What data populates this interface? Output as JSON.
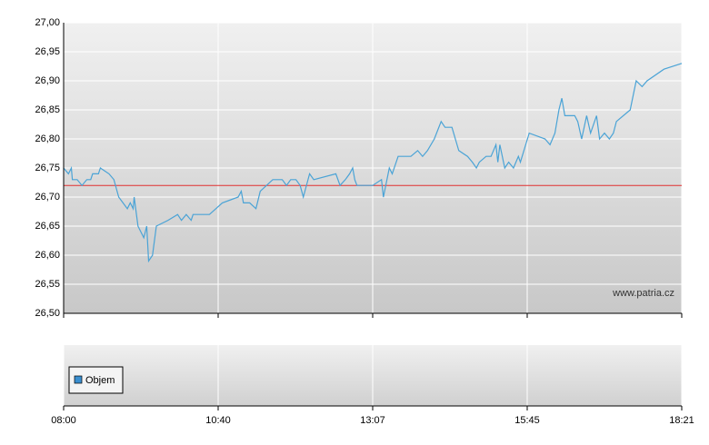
{
  "chart_data": {
    "type": "line",
    "watermark": "www.patria.cz",
    "x": [
      "08:00",
      "08:05",
      "08:08",
      "08:09",
      "08:14",
      "08:19",
      "08:24",
      "08:28",
      "08:30",
      "08:36",
      "08:38",
      "08:47",
      "08:52",
      "08:57",
      "09:06",
      "09:09",
      "09:12",
      "09:13",
      "09:17",
      "09:23",
      "09:26",
      "09:28",
      "09:32",
      "09:36",
      "09:48",
      "09:58",
      "10:02",
      "10:07",
      "10:12",
      "10:14",
      "10:31",
      "10:44",
      "10:59",
      "11:02",
      "11:04",
      "11:10",
      "11:16",
      "11:20",
      "11:32",
      "11:41",
      "11:45",
      "11:49",
      "11:54",
      "11:58",
      "12:01",
      "12:07",
      "12:11",
      "12:32",
      "12:36",
      "12:41",
      "12:45",
      "12:48",
      "12:50",
      "12:52",
      "12:58",
      "13:07",
      "13:16",
      "13:18",
      "13:24",
      "13:27",
      "13:33",
      "13:39",
      "13:46",
      "13:53",
      "13:58",
      "14:03",
      "14:10",
      "14:17",
      "14:21",
      "14:28",
      "14:35",
      "14:44",
      "14:49",
      "14:53",
      "14:56",
      "15:03",
      "15:08",
      "15:13",
      "15:15",
      "15:17",
      "15:22",
      "15:26",
      "15:31",
      "15:36",
      "15:38",
      "15:47",
      "16:03",
      "16:08",
      "16:13",
      "16:17",
      "16:20",
      "16:23",
      "16:33",
      "16:36",
      "16:40",
      "16:45",
      "16:49",
      "16:55",
      "16:58",
      "17:03",
      "17:08",
      "17:12",
      "17:15",
      "17:29",
      "17:35",
      "17:41",
      "17:46",
      "18:03",
      "18:21"
    ],
    "series": [
      {
        "color": "#4aa3d6",
        "values": [
          26.75,
          26.74,
          26.75,
          26.73,
          26.73,
          26.72,
          26.73,
          26.73,
          26.74,
          26.74,
          26.75,
          26.74,
          26.73,
          26.7,
          26.68,
          26.69,
          26.68,
          26.7,
          26.65,
          26.63,
          26.65,
          26.59,
          26.6,
          26.65,
          26.66,
          26.67,
          26.66,
          26.67,
          26.66,
          26.67,
          26.67,
          26.69,
          26.7,
          26.71,
          26.69,
          26.69,
          26.68,
          26.71,
          26.73,
          26.73,
          26.72,
          26.73,
          26.73,
          26.72,
          26.7,
          26.74,
          26.73,
          26.74,
          26.72,
          26.73,
          26.74,
          26.75,
          26.73,
          26.72,
          26.72,
          26.72,
          26.73,
          26.7,
          26.75,
          26.74,
          26.77,
          26.77,
          26.77,
          26.78,
          26.77,
          26.78,
          26.8,
          26.83,
          26.82,
          26.82,
          26.78,
          26.77,
          26.76,
          26.75,
          26.76,
          26.77,
          26.77,
          26.79,
          26.76,
          26.79,
          26.75,
          26.76,
          26.75,
          26.77,
          26.76,
          26.81,
          26.8,
          26.79,
          26.81,
          26.85,
          26.87,
          26.84,
          26.84,
          26.83,
          26.8,
          26.84,
          26.81,
          26.84,
          26.8,
          26.81,
          26.8,
          26.81,
          26.83,
          26.85,
          26.9,
          26.89,
          26.9,
          26.92,
          26.93
        ]
      }
    ],
    "reference": {
      "value": 26.72,
      "color": "#e03030"
    },
    "ylim": [
      26.5,
      27.0
    ],
    "yticks": [
      {
        "value": 26.5,
        "label": "26,50"
      },
      {
        "value": 26.55,
        "label": "26,55"
      },
      {
        "value": 26.6,
        "label": "26,60"
      },
      {
        "value": 26.65,
        "label": "26,65"
      },
      {
        "value": 26.7,
        "label": "26,70"
      },
      {
        "value": 26.75,
        "label": "26,75"
      },
      {
        "value": 26.8,
        "label": "26,80"
      },
      {
        "value": 26.85,
        "label": "26,85"
      },
      {
        "value": 26.9,
        "label": "26,90"
      },
      {
        "value": 26.95,
        "label": "26,95"
      },
      {
        "value": 27.0,
        "label": "27,00"
      }
    ],
    "xticks": [
      "08:00",
      "10:40",
      "13:07",
      "15:45",
      "18:21"
    ],
    "grid": true,
    "volume_panel": {
      "legend": "Objem",
      "color": "#3a8fd0"
    }
  }
}
